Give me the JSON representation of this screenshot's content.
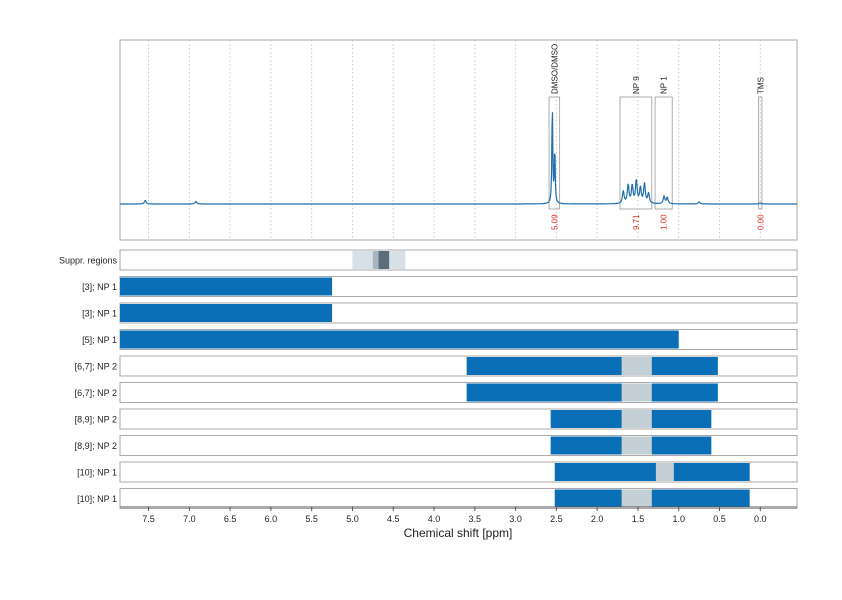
{
  "chart_data": {
    "type": "line",
    "xlabel": "Chemical shift [ppm]",
    "x_axis_reversed": true,
    "xlim": [
      7.85,
      -0.45
    ],
    "x_ticks": [
      "7.5",
      "7.0",
      "6.5",
      "6.0",
      "5.5",
      "5.0",
      "4.5",
      "4.0",
      "3.5",
      "3.0",
      "2.5",
      "2.0",
      "1.5",
      "1.0",
      "0.5",
      "0.0"
    ],
    "grid": "vertical dotted",
    "colors": {
      "spectrum": "#1f6fad",
      "bar": "#0b6fb8",
      "suppressed": "#c5cfd6",
      "integral": "#e0302a",
      "frame": "#aaaaaa"
    },
    "spectrum": {
      "baseline_ppm": [
        7.85,
        -0.45
      ],
      "peaks": [
        {
          "ppm": 7.54,
          "height": 0.035
        },
        {
          "ppm": 6.92,
          "height": 0.025
        },
        {
          "ppm": 2.55,
          "height": 1.0
        },
        {
          "ppm": 2.52,
          "height": 0.55
        },
        {
          "ppm": 1.68,
          "height": 0.12
        },
        {
          "ppm": 1.62,
          "height": 0.18
        },
        {
          "ppm": 1.57,
          "height": 0.17
        },
        {
          "ppm": 1.52,
          "height": 0.22
        },
        {
          "ppm": 1.47,
          "height": 0.15
        },
        {
          "ppm": 1.42,
          "height": 0.19
        },
        {
          "ppm": 1.37,
          "height": 0.1
        },
        {
          "ppm": 1.18,
          "height": 0.07
        },
        {
          "ppm": 1.14,
          "height": 0.06
        },
        {
          "ppm": 0.75,
          "height": 0.02
        },
        {
          "ppm": 0.0,
          "height": 0.01
        }
      ]
    },
    "annotations": [
      {
        "label": "DMSO/DMSO",
        "from": 2.59,
        "to": 2.46,
        "integral": "5.09"
      },
      {
        "label": "NP 9",
        "from": 1.72,
        "to": 1.33,
        "integral": "9.71"
      },
      {
        "label": "NP 1",
        "from": 1.29,
        "to": 1.08,
        "integral": "1.00"
      },
      {
        "label": "TMS",
        "from": 0.02,
        "to": -0.02,
        "integral": "0.00"
      }
    ],
    "suppressed_region": {
      "label": "Suppr. regions",
      "from": 5.0,
      "to": 4.35,
      "core_from": 4.75,
      "core_to": 4.6,
      "inner_from": 4.68,
      "inner_to": 4.55
    },
    "rows": [
      {
        "label": "[3]; NP 1",
        "bars": [
          [
            7.85,
            5.25
          ]
        ],
        "gaps": []
      },
      {
        "label": "[3]; NP 1",
        "bars": [
          [
            7.85,
            5.25
          ]
        ],
        "gaps": []
      },
      {
        "label": "[5]; NP 1",
        "bars": [
          [
            7.85,
            1.0
          ]
        ],
        "gaps": []
      },
      {
        "label": "[6,7]; NP 2",
        "bars": [
          [
            3.6,
            0.52
          ]
        ],
        "gaps": [
          [
            1.7,
            1.33
          ]
        ]
      },
      {
        "label": "[6,7]; NP 2",
        "bars": [
          [
            3.6,
            0.52
          ]
        ],
        "gaps": [
          [
            1.7,
            1.33
          ]
        ]
      },
      {
        "label": "[8,9]; NP 2",
        "bars": [
          [
            2.57,
            0.6
          ]
        ],
        "gaps": [
          [
            1.7,
            1.33
          ]
        ]
      },
      {
        "label": "[8,9]; NP 2",
        "bars": [
          [
            2.57,
            0.6
          ]
        ],
        "gaps": [
          [
            1.7,
            1.33
          ]
        ]
      },
      {
        "label": "[10]; NP 1",
        "bars": [
          [
            2.52,
            0.13
          ]
        ],
        "gaps": [
          [
            1.28,
            1.06
          ]
        ]
      },
      {
        "label": "[10]; NP 1",
        "bars": [
          [
            2.52,
            0.13
          ]
        ],
        "gaps": [
          [
            1.7,
            1.33
          ]
        ]
      }
    ]
  }
}
